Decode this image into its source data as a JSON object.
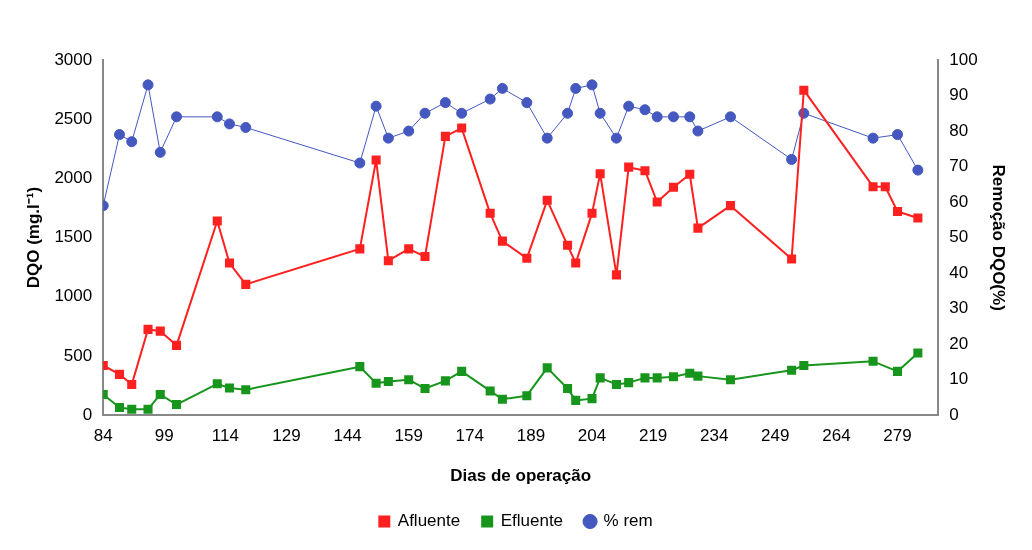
{
  "chart_data": {
    "type": "line",
    "xlabel": "Dias de operação",
    "ylabel": "DQO (mg.l⁻¹)",
    "y2label": "Remoção DQO(%)",
    "x": [
      84,
      88,
      91,
      95,
      98,
      102,
      112,
      115,
      119,
      147,
      151,
      154,
      159,
      163,
      168,
      172,
      179,
      182,
      188,
      193,
      198,
      200,
      204,
      206,
      210,
      213,
      217,
      220,
      224,
      228,
      230,
      238,
      253,
      256,
      273,
      276,
      279,
      284
    ],
    "series": [
      {
        "name": "Afluente",
        "color": "#ff2020",
        "marker": "square",
        "values": [
          420,
          345,
          260,
          725,
          710,
          590,
          1640,
          1285,
          1105,
          1405,
          2155,
          1305,
          1405,
          1340,
          2355,
          2425,
          1705,
          1470,
          1325,
          1815,
          1435,
          1285,
          1705,
          2040,
          1185,
          2095,
          2065,
          1800,
          1925,
          2035,
          1580,
          1770,
          1320,
          2745,
          1930,
          1930,
          1720,
          1665
        ]
      },
      {
        "name": "Efluente",
        "color": "#18951c",
        "marker": "square",
        "values": [
          175,
          65,
          50,
          50,
          175,
          90,
          265,
          230,
          215,
          410,
          270,
          285,
          300,
          225,
          290,
          370,
          205,
          135,
          165,
          400,
          225,
          125,
          140,
          315,
          260,
          275,
          315,
          315,
          325,
          355,
          330,
          300,
          380,
          420,
          455,
          null,
          370,
          525
        ]
      },
      {
        "name": "% rem",
        "color": "#4458c0",
        "marker": "circle",
        "axis": "y2",
        "values": [
          59,
          79,
          77,
          93,
          74,
          84,
          84,
          82,
          81,
          71,
          87,
          78,
          80,
          85,
          88,
          85,
          89,
          92,
          88,
          78,
          85,
          92,
          93,
          85,
          78,
          87,
          86,
          84,
          84,
          84,
          80,
          84,
          72,
          85,
          78,
          null,
          79,
          69
        ]
      }
    ],
    "xlim": [
      84,
      289
    ],
    "xticks": [
      84,
      99,
      114,
      129,
      144,
      159,
      174,
      189,
      204,
      219,
      234,
      249,
      264,
      279
    ],
    "ylim": [
      0,
      3000
    ],
    "yticks": [
      0,
      500,
      1000,
      1500,
      2000,
      2500,
      3000
    ],
    "y2lim": [
      0,
      100
    ],
    "y2ticks": [
      0,
      10,
      20,
      30,
      40,
      50,
      60,
      70,
      80,
      90,
      100
    ],
    "grid": false,
    "legend": "bottom",
    "line_style": "solid"
  }
}
